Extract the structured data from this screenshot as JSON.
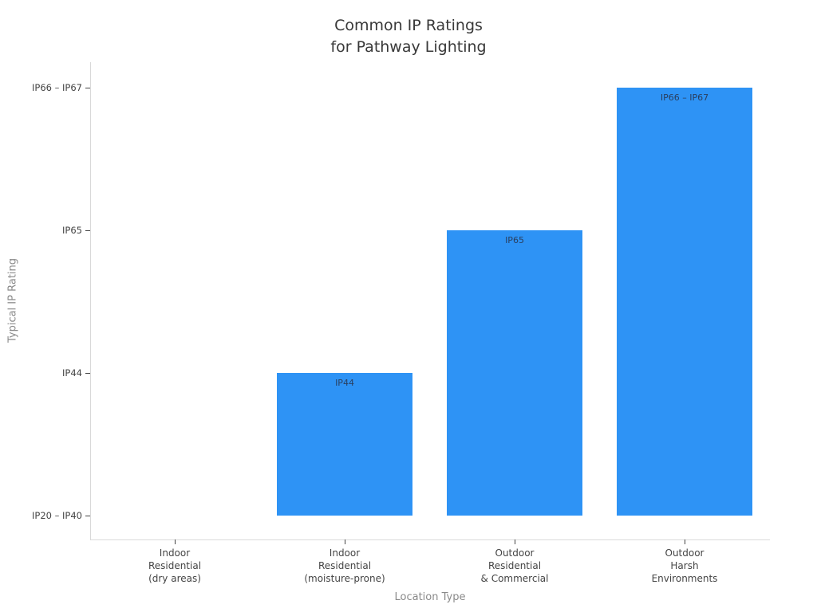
{
  "chart_data": {
    "type": "bar",
    "title": "Common IP Ratings for Pathway Lighting",
    "title_lines": [
      "Common IP Ratings",
      "for Pathway Lighting"
    ],
    "xlabel": "Location Type",
    "ylabel": "Typical IP Rating",
    "categories": [
      [
        "Indoor",
        "Residential",
        "(dry areas)"
      ],
      [
        "Indoor",
        "Residential",
        "(moisture-prone)"
      ],
      [
        "Outdoor",
        "Residential",
        "& Commercial"
      ],
      [
        "Outdoor",
        "Harsh",
        "Environments"
      ]
    ],
    "ytick_labels": [
      "IP20 – IP40",
      "IP44",
      "IP65",
      "IP66 – IP67"
    ],
    "values": [
      0,
      1,
      2,
      3
    ],
    "bar_labels": [
      "",
      "IP44",
      "IP65",
      "IP66 – IP67"
    ],
    "bar_color": "#2e93f5",
    "bar_label_color": "#2a3f5f",
    "grid": false,
    "legend": false,
    "ylim": [
      0,
      3.2
    ],
    "scale_note": "ordinal y-axis: 0 = IP20 – IP40, 1 = IP44, 2 = IP65, 3 = IP66 – IP67"
  }
}
